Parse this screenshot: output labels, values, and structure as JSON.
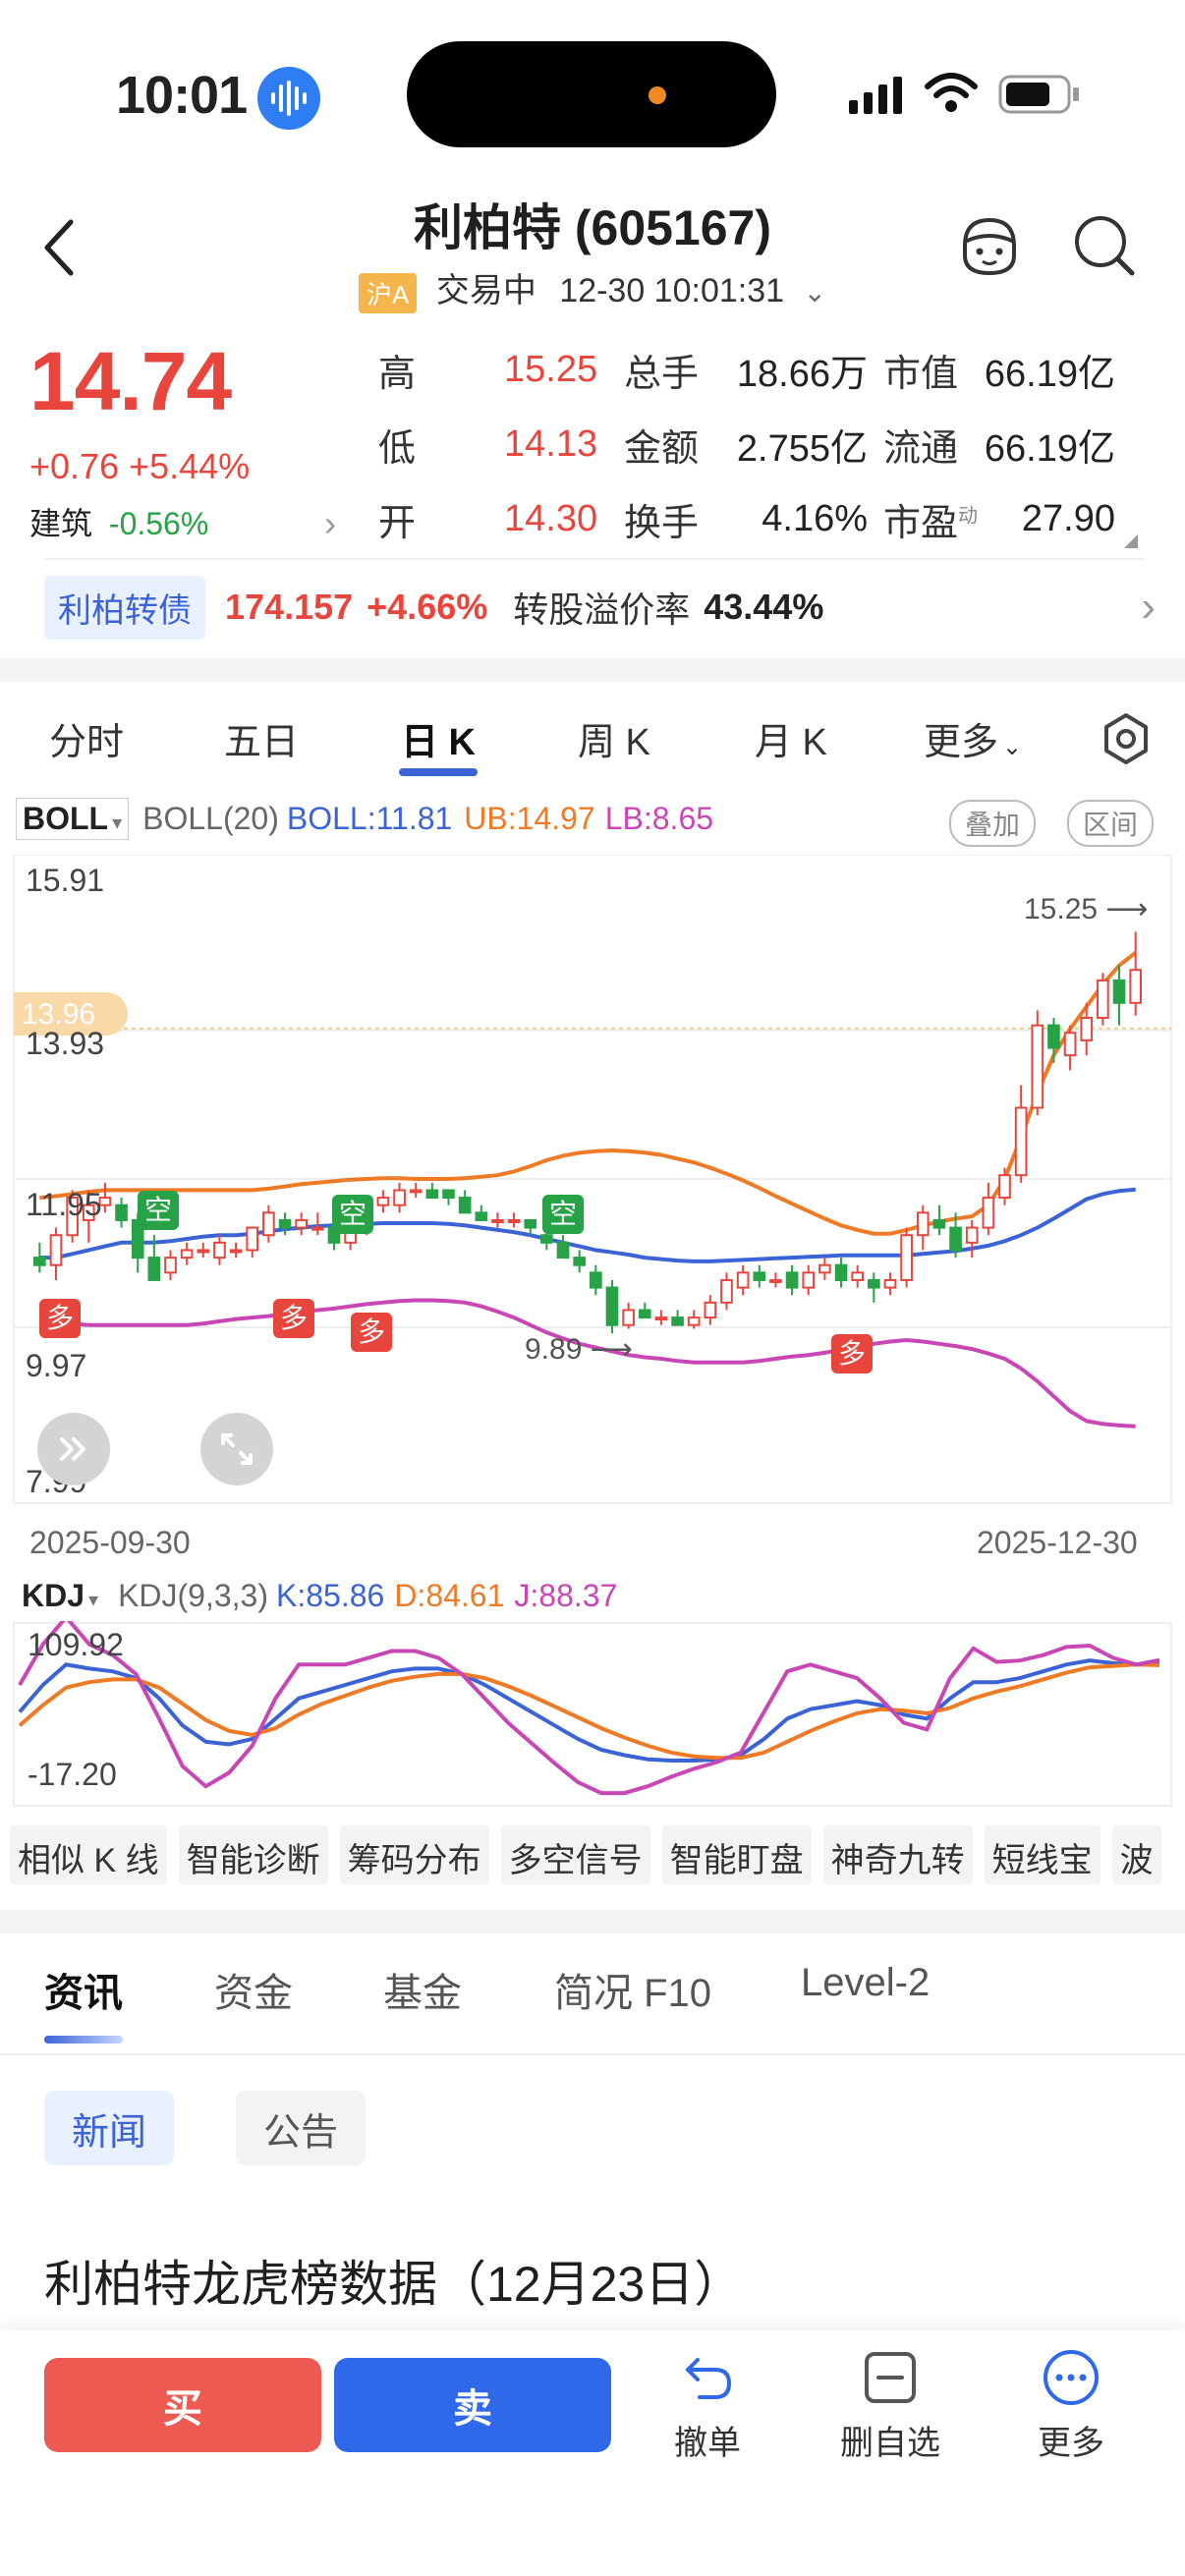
{
  "status_bar": {
    "time": "10:01"
  },
  "header": {
    "title": "利柏特 (605167)",
    "market_badge": "沪A",
    "trading_status": "交易中",
    "datetime": "12-30 10:01:31"
  },
  "quote": {
    "price": "14.74",
    "change": "+0.76 +5.44%",
    "sector_name": "建筑",
    "sector_change": "-0.56%",
    "rows": [
      {
        "l1": "高",
        "v1": "15.25",
        "l2": "总手",
        "v2": "18.66万",
        "l3": "市值",
        "v3": "66.19亿"
      },
      {
        "l1": "低",
        "v1": "14.13",
        "l2": "金额",
        "v2": "2.755亿",
        "l3": "流通",
        "v3": "66.19亿"
      },
      {
        "l1": "开",
        "v1": "14.30",
        "l2": "换手",
        "v2": "4.16%",
        "l3": "市盈",
        "v3": "27.90"
      }
    ],
    "pe_superscript": "动"
  },
  "bond": {
    "tag": "利柏转债",
    "price": "174.157",
    "change": "+4.66%",
    "premium_label": "转股溢价率",
    "premium_value": "43.44%"
  },
  "chart_tabs": [
    "分时",
    "五日",
    "日 K",
    "周 K",
    "月 K",
    "更多"
  ],
  "boll": {
    "selector": "BOLL",
    "param": "BOLL(20)",
    "mid": "BOLL:11.81",
    "ub": "UB:14.97",
    "lb": "LB:8.65",
    "btn_overlay": "叠加",
    "btn_range": "区间",
    "y_labels": [
      "15.91",
      "13.93",
      "11.95",
      "9.97",
      "7.99"
    ],
    "current_tag": "13.96",
    "high_mark": "15.25",
    "low_mark": "9.89",
    "date_start": "2025-09-30",
    "date_end": "2025-12-30",
    "signal_short": "空",
    "signal_long": "多"
  },
  "kdj": {
    "selector": "KDJ",
    "param": "KDJ(9,3,3)",
    "k": "K:85.86",
    "d": "D:84.61",
    "j": "J:88.37",
    "y_max": "109.92",
    "y_min": "-17.20"
  },
  "tool_tags": [
    "相似 K 线",
    "智能诊断",
    "筹码分布",
    "多空信号",
    "智能盯盘",
    "神奇九转",
    "短线宝",
    "波"
  ],
  "news_tabs": [
    "资讯",
    "资金",
    "基金",
    "简况 F10",
    "Level-2"
  ],
  "news_subtabs": [
    "新闻",
    "公告"
  ],
  "headline": "利柏特龙虎榜数据（12月23日）",
  "bottom_bar": {
    "buy": "买",
    "sell": "卖",
    "cancel_order": "撤单",
    "remove_watch": "删自选",
    "more": "更多"
  },
  "colors": {
    "up": "#e8463d",
    "down": "#27a246",
    "boll_mid": "#3a63d6",
    "boll_ub": "#ef7a25",
    "boll_lb": "#c946b5",
    "accent": "#2f68e8"
  },
  "chart_data": [
    {
      "type": "candlestick",
      "indicator": "BOLL(20)",
      "x_range": [
        "2025-09-30",
        "2025-12-30"
      ],
      "ylim": [
        7.99,
        15.91
      ],
      "y_ticks": [
        15.91,
        13.93,
        11.95,
        9.97,
        7.99
      ],
      "candles": [
        {
          "o": 10.9,
          "h": 11.1,
          "l": 10.7,
          "c": 10.8
        },
        {
          "o": 10.8,
          "h": 11.3,
          "l": 10.6,
          "c": 11.2
        },
        {
          "o": 11.2,
          "h": 11.8,
          "l": 11.1,
          "c": 11.7
        },
        {
          "o": 11.4,
          "h": 11.8,
          "l": 11.1,
          "c": 11.6
        },
        {
          "o": 11.6,
          "h": 11.9,
          "l": 11.5,
          "c": 11.7
        },
        {
          "o": 11.6,
          "h": 11.7,
          "l": 11.3,
          "c": 11.4
        },
        {
          "o": 11.4,
          "h": 11.5,
          "l": 10.7,
          "c": 10.9
        },
        {
          "o": 10.9,
          "h": 11.2,
          "l": 10.6,
          "c": 10.6
        },
        {
          "o": 10.7,
          "h": 11.0,
          "l": 10.6,
          "c": 10.9
        },
        {
          "o": 10.9,
          "h": 11.1,
          "l": 10.8,
          "c": 11.0
        },
        {
          "o": 11.0,
          "h": 11.1,
          "l": 10.9,
          "c": 11.0
        },
        {
          "o": 10.9,
          "h": 11.2,
          "l": 10.8,
          "c": 11.1
        },
        {
          "o": 11.0,
          "h": 11.1,
          "l": 10.9,
          "c": 11.0
        },
        {
          "o": 11.0,
          "h": 11.3,
          "l": 10.9,
          "c": 11.3
        },
        {
          "o": 11.2,
          "h": 11.6,
          "l": 11.1,
          "c": 11.5
        },
        {
          "o": 11.4,
          "h": 11.5,
          "l": 11.2,
          "c": 11.3
        },
        {
          "o": 11.3,
          "h": 11.5,
          "l": 11.2,
          "c": 11.4
        },
        {
          "o": 11.3,
          "h": 11.5,
          "l": 11.2,
          "c": 11.3
        },
        {
          "o": 11.3,
          "h": 11.4,
          "l": 11.0,
          "c": 11.1
        },
        {
          "o": 11.1,
          "h": 11.5,
          "l": 11.0,
          "c": 11.4
        },
        {
          "o": 11.3,
          "h": 11.7,
          "l": 11.2,
          "c": 11.6
        },
        {
          "o": 11.6,
          "h": 11.8,
          "l": 11.5,
          "c": 11.7
        },
        {
          "o": 11.6,
          "h": 11.9,
          "l": 11.5,
          "c": 11.8
        },
        {
          "o": 11.8,
          "h": 11.9,
          "l": 11.7,
          "c": 11.8
        },
        {
          "o": 11.8,
          "h": 11.9,
          "l": 11.7,
          "c": 11.7
        },
        {
          "o": 11.8,
          "h": 11.8,
          "l": 11.6,
          "c": 11.7
        },
        {
          "o": 11.7,
          "h": 11.8,
          "l": 11.5,
          "c": 11.5
        },
        {
          "o": 11.5,
          "h": 11.6,
          "l": 11.4,
          "c": 11.4
        },
        {
          "o": 11.4,
          "h": 11.5,
          "l": 11.3,
          "c": 11.4
        },
        {
          "o": 11.4,
          "h": 11.5,
          "l": 11.3,
          "c": 11.4
        },
        {
          "o": 11.4,
          "h": 11.4,
          "l": 11.2,
          "c": 11.3
        },
        {
          "o": 11.2,
          "h": 11.3,
          "l": 11.0,
          "c": 11.1
        },
        {
          "o": 11.1,
          "h": 11.2,
          "l": 10.9,
          "c": 10.9
        },
        {
          "o": 10.9,
          "h": 11.0,
          "l": 10.7,
          "c": 10.8
        },
        {
          "o": 10.7,
          "h": 10.8,
          "l": 10.4,
          "c": 10.5
        },
        {
          "o": 10.5,
          "h": 10.6,
          "l": 9.89,
          "c": 10.0
        },
        {
          "o": 10.0,
          "h": 10.3,
          "l": 9.95,
          "c": 10.2
        },
        {
          "o": 10.2,
          "h": 10.3,
          "l": 10.1,
          "c": 10.1
        },
        {
          "o": 10.1,
          "h": 10.2,
          "l": 10.0,
          "c": 10.1
        },
        {
          "o": 10.1,
          "h": 10.2,
          "l": 10.0,
          "c": 10.0
        },
        {
          "o": 10.0,
          "h": 10.2,
          "l": 9.95,
          "c": 10.1
        },
        {
          "o": 10.1,
          "h": 10.4,
          "l": 10.0,
          "c": 10.3
        },
        {
          "o": 10.3,
          "h": 10.7,
          "l": 10.2,
          "c": 10.6
        },
        {
          "o": 10.5,
          "h": 10.8,
          "l": 10.4,
          "c": 10.7
        },
        {
          "o": 10.7,
          "h": 10.8,
          "l": 10.5,
          "c": 10.6
        },
        {
          "o": 10.6,
          "h": 10.7,
          "l": 10.5,
          "c": 10.6
        },
        {
          "o": 10.7,
          "h": 10.8,
          "l": 10.4,
          "c": 10.5
        },
        {
          "o": 10.5,
          "h": 10.8,
          "l": 10.4,
          "c": 10.7
        },
        {
          "o": 10.7,
          "h": 10.9,
          "l": 10.6,
          "c": 10.8
        },
        {
          "o": 10.8,
          "h": 10.9,
          "l": 10.5,
          "c": 10.6
        },
        {
          "o": 10.6,
          "h": 10.8,
          "l": 10.5,
          "c": 10.7
        },
        {
          "o": 10.6,
          "h": 10.7,
          "l": 10.3,
          "c": 10.5
        },
        {
          "o": 10.5,
          "h": 10.7,
          "l": 10.4,
          "c": 10.6
        },
        {
          "o": 10.6,
          "h": 11.3,
          "l": 10.5,
          "c": 11.2
        },
        {
          "o": 11.2,
          "h": 11.6,
          "l": 11.0,
          "c": 11.5
        },
        {
          "o": 11.4,
          "h": 11.6,
          "l": 11.2,
          "c": 11.3
        },
        {
          "o": 11.3,
          "h": 11.5,
          "l": 10.9,
          "c": 11.0
        },
        {
          "o": 11.1,
          "h": 11.4,
          "l": 10.9,
          "c": 11.3
        },
        {
          "o": 11.3,
          "h": 11.9,
          "l": 11.2,
          "c": 11.7
        },
        {
          "o": 11.7,
          "h": 12.1,
          "l": 11.6,
          "c": 12.0
        },
        {
          "o": 12.0,
          "h": 13.2,
          "l": 11.9,
          "c": 12.9
        },
        {
          "o": 12.9,
          "h": 14.2,
          "l": 12.8,
          "c": 14.0
        },
        {
          "o": 14.0,
          "h": 14.1,
          "l": 13.5,
          "c": 13.7
        },
        {
          "o": 13.6,
          "h": 14.0,
          "l": 13.4,
          "c": 13.9
        },
        {
          "o": 13.8,
          "h": 14.3,
          "l": 13.6,
          "c": 14.1
        },
        {
          "o": 14.1,
          "h": 14.7,
          "l": 14.0,
          "c": 14.6
        },
        {
          "o": 14.6,
          "h": 14.8,
          "l": 14.0,
          "c": 14.3
        },
        {
          "o": 14.3,
          "h": 15.25,
          "l": 14.13,
          "c": 14.74
        }
      ],
      "boll_mid": [
        10.9,
        10.9,
        10.95,
        11.0,
        11.05,
        11.1,
        11.1,
        11.1,
        11.12,
        11.15,
        11.18,
        11.2,
        11.2,
        11.22,
        11.25,
        11.28,
        11.3,
        11.32,
        11.33,
        11.34,
        11.35,
        11.36,
        11.36,
        11.36,
        11.36,
        11.35,
        11.33,
        11.3,
        11.27,
        11.24,
        11.2,
        11.15,
        11.1,
        11.05,
        11.0,
        10.97,
        10.94,
        10.9,
        10.88,
        10.86,
        10.85,
        10.85,
        10.86,
        10.87,
        10.88,
        10.89,
        10.9,
        10.91,
        10.92,
        10.93,
        10.93,
        10.93,
        10.93,
        10.93,
        10.95,
        10.97,
        10.99,
        11.02,
        11.06,
        11.12,
        11.2,
        11.3,
        11.42,
        11.55,
        11.68,
        11.75,
        11.79,
        11.81
      ],
      "boll_ub": [
        11.7,
        11.72,
        11.75,
        11.78,
        11.8,
        11.8,
        11.8,
        11.8,
        11.8,
        11.8,
        11.8,
        11.8,
        11.8,
        11.8,
        11.82,
        11.85,
        11.88,
        11.9,
        11.92,
        11.94,
        11.95,
        11.96,
        11.96,
        11.95,
        11.95,
        11.95,
        11.96,
        11.98,
        12.0,
        12.05,
        12.12,
        12.2,
        12.26,
        12.3,
        12.32,
        12.33,
        12.32,
        12.3,
        12.27,
        12.22,
        12.17,
        12.1,
        12.02,
        11.93,
        11.83,
        11.72,
        11.62,
        11.52,
        11.42,
        11.33,
        11.27,
        11.22,
        11.22,
        11.27,
        11.33,
        11.38,
        11.42,
        11.45,
        11.6,
        11.95,
        12.5,
        13.1,
        13.6,
        13.95,
        14.25,
        14.55,
        14.8,
        14.97
      ],
      "boll_lb": [
        10.1,
        10.05,
        10.02,
        10.0,
        10.0,
        10.0,
        10.0,
        10.0,
        10.0,
        10.0,
        10.02,
        10.05,
        10.08,
        10.1,
        10.12,
        10.15,
        10.18,
        10.2,
        10.22,
        10.25,
        10.28,
        10.3,
        10.32,
        10.33,
        10.33,
        10.32,
        10.3,
        10.25,
        10.18,
        10.1,
        10.0,
        9.9,
        9.82,
        9.75,
        9.7,
        9.65,
        9.6,
        9.57,
        9.55,
        9.52,
        9.5,
        9.5,
        9.5,
        9.5,
        9.52,
        9.55,
        9.58,
        9.6,
        9.63,
        9.67,
        9.72,
        9.75,
        9.78,
        9.8,
        9.78,
        9.75,
        9.72,
        9.68,
        9.62,
        9.55,
        9.42,
        9.25,
        9.05,
        8.85,
        8.72,
        8.68,
        8.66,
        8.65
      ]
    },
    {
      "type": "line",
      "indicator": "KDJ(9,3,3)",
      "ylim": [
        -17.2,
        109.92
      ],
      "series": [
        {
          "name": "K",
          "values": [
            50,
            70,
            85,
            82,
            80,
            75,
            60,
            40,
            28,
            26,
            30,
            45,
            60,
            65,
            70,
            75,
            80,
            82,
            82,
            78,
            70,
            60,
            50,
            40,
            30,
            22,
            18,
            15,
            14,
            14,
            15,
            18,
            30,
            45,
            52,
            55,
            58,
            55,
            48,
            45,
            60,
            72,
            72,
            75,
            80,
            85,
            88,
            86,
            85,
            86
          ]
        },
        {
          "name": "D",
          "values": [
            40,
            55,
            68,
            72,
            74,
            74,
            68,
            56,
            44,
            36,
            33,
            38,
            48,
            56,
            62,
            68,
            73,
            76,
            78,
            78,
            75,
            69,
            62,
            54,
            46,
            38,
            31,
            25,
            20,
            17,
            16,
            16,
            20,
            28,
            36,
            43,
            49,
            52,
            51,
            49,
            53,
            60,
            65,
            69,
            74,
            79,
            83,
            84,
            85,
            84.6
          ]
        },
        {
          "name": "J",
          "values": [
            70,
            100,
            120,
            100,
            92,
            78,
            45,
            10,
            -5,
            5,
            25,
            60,
            85,
            85,
            85,
            90,
            95,
            95,
            90,
            78,
            60,
            42,
            27,
            12,
            -2,
            -10,
            -10,
            -5,
            2,
            8,
            13,
            20,
            50,
            80,
            85,
            80,
            75,
            60,
            42,
            37,
            75,
            97,
            87,
            88,
            92,
            98,
            99,
            90,
            85,
            88.37
          ]
        }
      ]
    }
  ]
}
